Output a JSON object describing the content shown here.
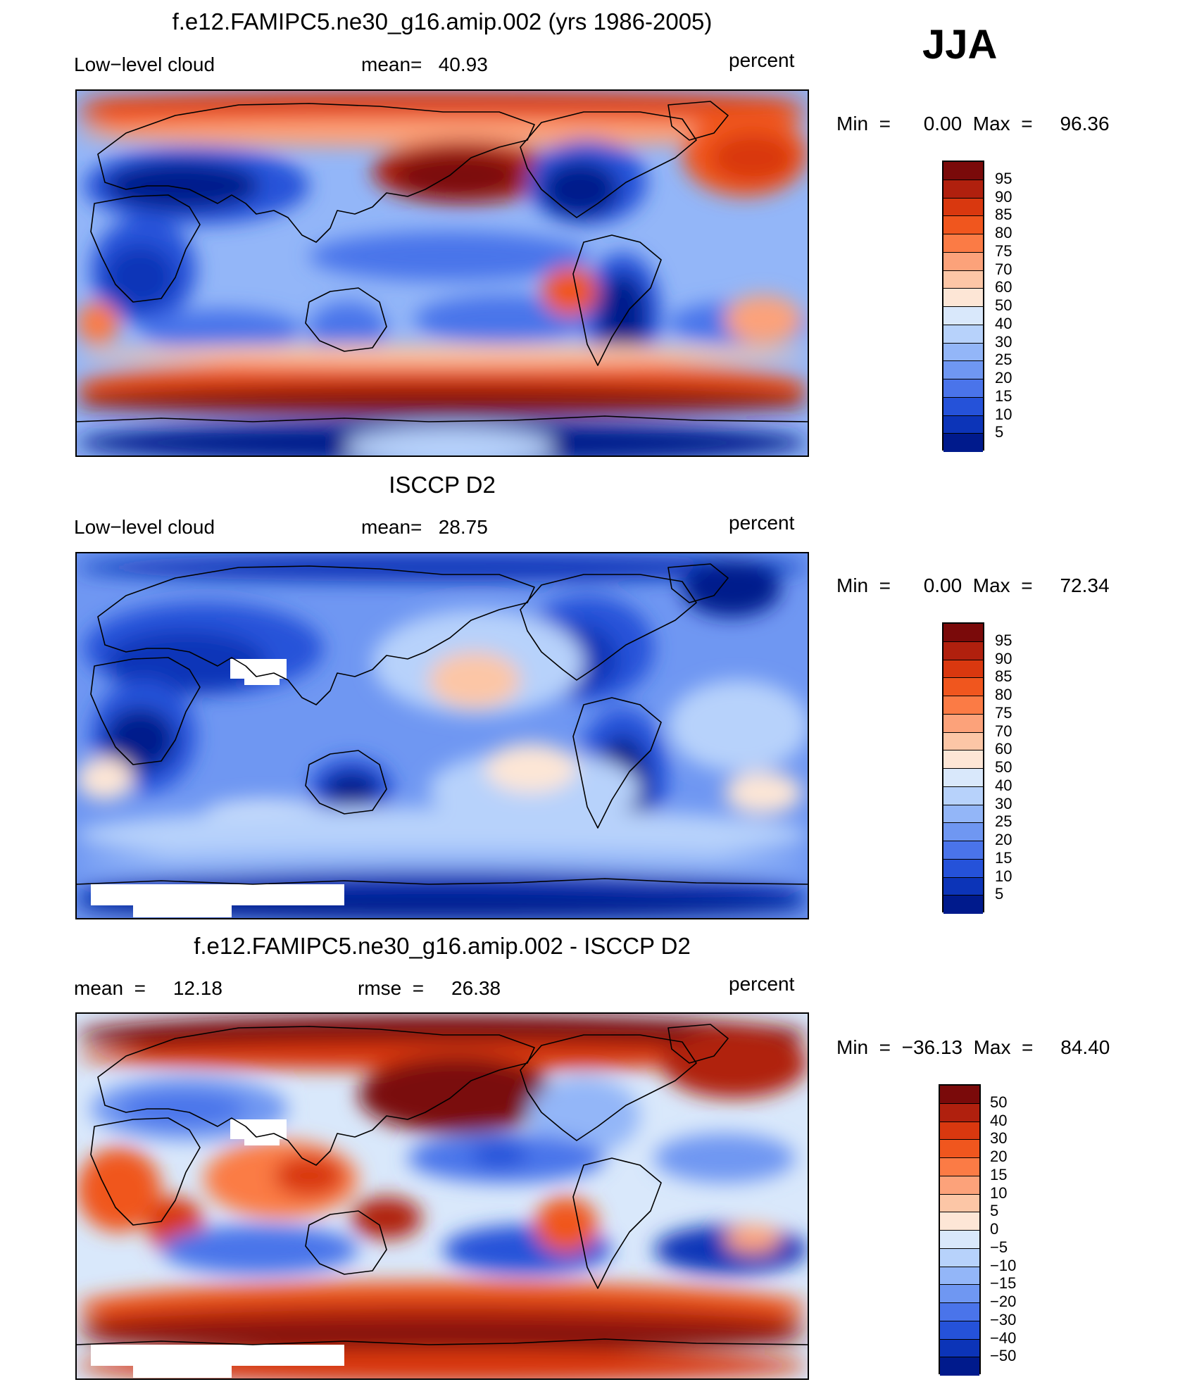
{
  "season": "JJA",
  "panels": [
    {
      "title": "f.e12.FAMIPC5.ne30_g16.amip.002 (yrs 1986-2005)",
      "left_label": "Low−level cloud",
      "mid_label": "mean=   40.93",
      "units": "percent",
      "minmax": "Min  =      0.00  Max  =     96.36",
      "colorbar_labels": [
        "95",
        "90",
        "85",
        "80",
        "75",
        "70",
        "60",
        "50",
        "40",
        "30",
        "25",
        "20",
        "15",
        "10",
        "5"
      ],
      "colors": [
        "#7a0a0a",
        "#b0200e",
        "#d9380f",
        "#f0561e",
        "#fb7b45",
        "#fca27a",
        "#fcc6a6",
        "#fde6d6",
        "#d9e8fb",
        "#b7d2fb",
        "#93b6f8",
        "#6f97f2",
        "#4a74ea",
        "#2552d9",
        "#0c34b8",
        "#001a8c"
      ],
      "map_style": "model"
    },
    {
      "title": "ISCCP D2",
      "left_label": "Low−level cloud",
      "mid_label": "mean=   28.75",
      "units": "percent",
      "minmax": "Min  =      0.00  Max  =     72.34",
      "colorbar_labels": [
        "95",
        "90",
        "85",
        "80",
        "75",
        "70",
        "60",
        "50",
        "40",
        "30",
        "25",
        "20",
        "15",
        "10",
        "5"
      ],
      "colors": [
        "#7a0a0a",
        "#b0200e",
        "#d9380f",
        "#f0561e",
        "#fb7b45",
        "#fca27a",
        "#fcc6a6",
        "#fde6d6",
        "#d9e8fb",
        "#b7d2fb",
        "#93b6f8",
        "#6f97f2",
        "#4a74ea",
        "#2552d9",
        "#0c34b8",
        "#001a8c"
      ],
      "map_style": "obs"
    },
    {
      "title": "f.e12.FAMIPC5.ne30_g16.amip.002 - ISCCP D2",
      "left_label": "mean  =     12.18",
      "mid_label": "rmse  =     26.38",
      "units": "percent",
      "minmax": "Min  =  −36.13  Max  =     84.40",
      "colorbar_labels": [
        "50",
        "40",
        "30",
        "20",
        "15",
        "10",
        "5",
        "0",
        "−5",
        "−10",
        "−15",
        "−20",
        "−30",
        "−40",
        "−50"
      ],
      "colors": [
        "#7a0a0a",
        "#b0200e",
        "#d9380f",
        "#f0561e",
        "#fb7b45",
        "#fca27a",
        "#fcc6a6",
        "#fde6d6",
        "#d9e8fb",
        "#b7d2fb",
        "#93b6f8",
        "#6f97f2",
        "#4a74ea",
        "#2552d9",
        "#0c34b8",
        "#001a8c"
      ],
      "map_style": "diff"
    }
  ]
}
